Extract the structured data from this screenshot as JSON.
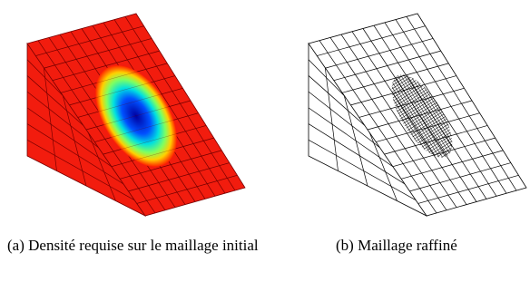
{
  "captions": [
    "(a) Densité requise sur le maillage initial",
    "(b) Maillage raffiné"
  ]
}
